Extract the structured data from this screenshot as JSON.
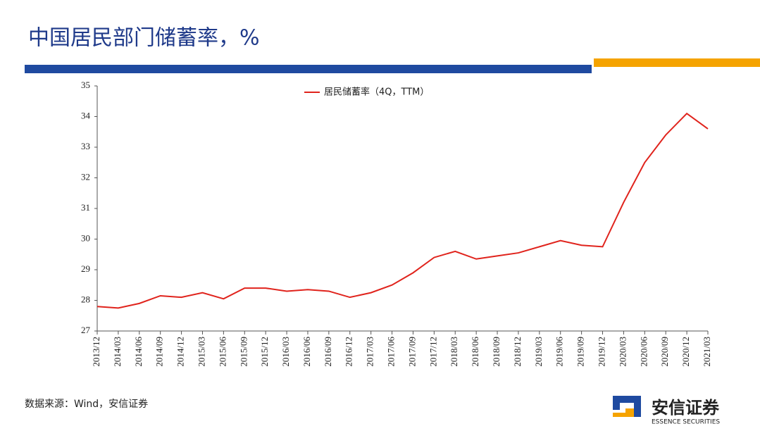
{
  "header": {
    "title": "中国居民部门储蓄率，%"
  },
  "chart_data": {
    "type": "line",
    "categories": [
      "2013/12",
      "2014/03",
      "2014/06",
      "2014/09",
      "2014/12",
      "2015/03",
      "2015/06",
      "2015/09",
      "2015/12",
      "2016/03",
      "2016/06",
      "2016/09",
      "2016/12",
      "2017/03",
      "2017/06",
      "2017/09",
      "2017/12",
      "2018/03",
      "2018/06",
      "2018/09",
      "2018/12",
      "2019/03",
      "2019/06",
      "2019/09",
      "2019/12",
      "2020/03",
      "2020/06",
      "2020/09",
      "2020/12",
      "2021/03"
    ],
    "series": [
      {
        "name": "居民储蓄率（4Q，TTM）",
        "color": "#e0231c",
        "values": [
          27.8,
          27.75,
          27.9,
          28.15,
          28.1,
          28.25,
          28.05,
          28.4,
          28.4,
          28.3,
          28.35,
          28.3,
          28.1,
          28.25,
          28.5,
          28.9,
          29.4,
          29.6,
          29.35,
          29.45,
          29.55,
          29.75,
          29.95,
          29.8,
          29.75,
          31.2,
          32.5,
          33.4,
          34.1,
          33.6
        ]
      }
    ],
    "ylim": [
      27,
      35
    ],
    "yticks": [
      27,
      28,
      29,
      30,
      31,
      32,
      33,
      34,
      35
    ],
    "legend": "top"
  },
  "footer": {
    "source": "数据来源：Wind，安信证券"
  },
  "logo": {
    "name": "安信证券",
    "english": "ESSENCE SECURITIES"
  }
}
